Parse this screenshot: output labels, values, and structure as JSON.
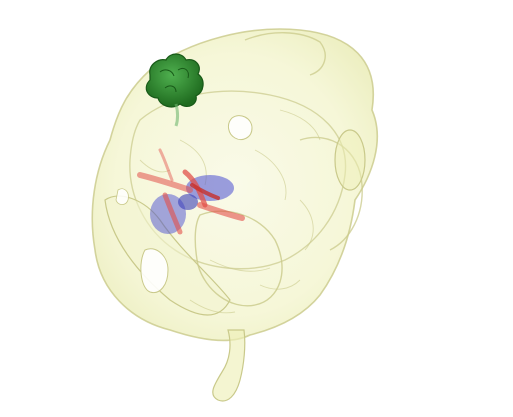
{
  "scene": {
    "background_color": "#ffffff",
    "skull_color": "#eef0b8",
    "skull_edge_color": "#c9c98a",
    "green_structure_color": "#2e8b2e",
    "vessel_color": "#e2504a",
    "blue_structure_color": "#4b4fd1"
  }
}
